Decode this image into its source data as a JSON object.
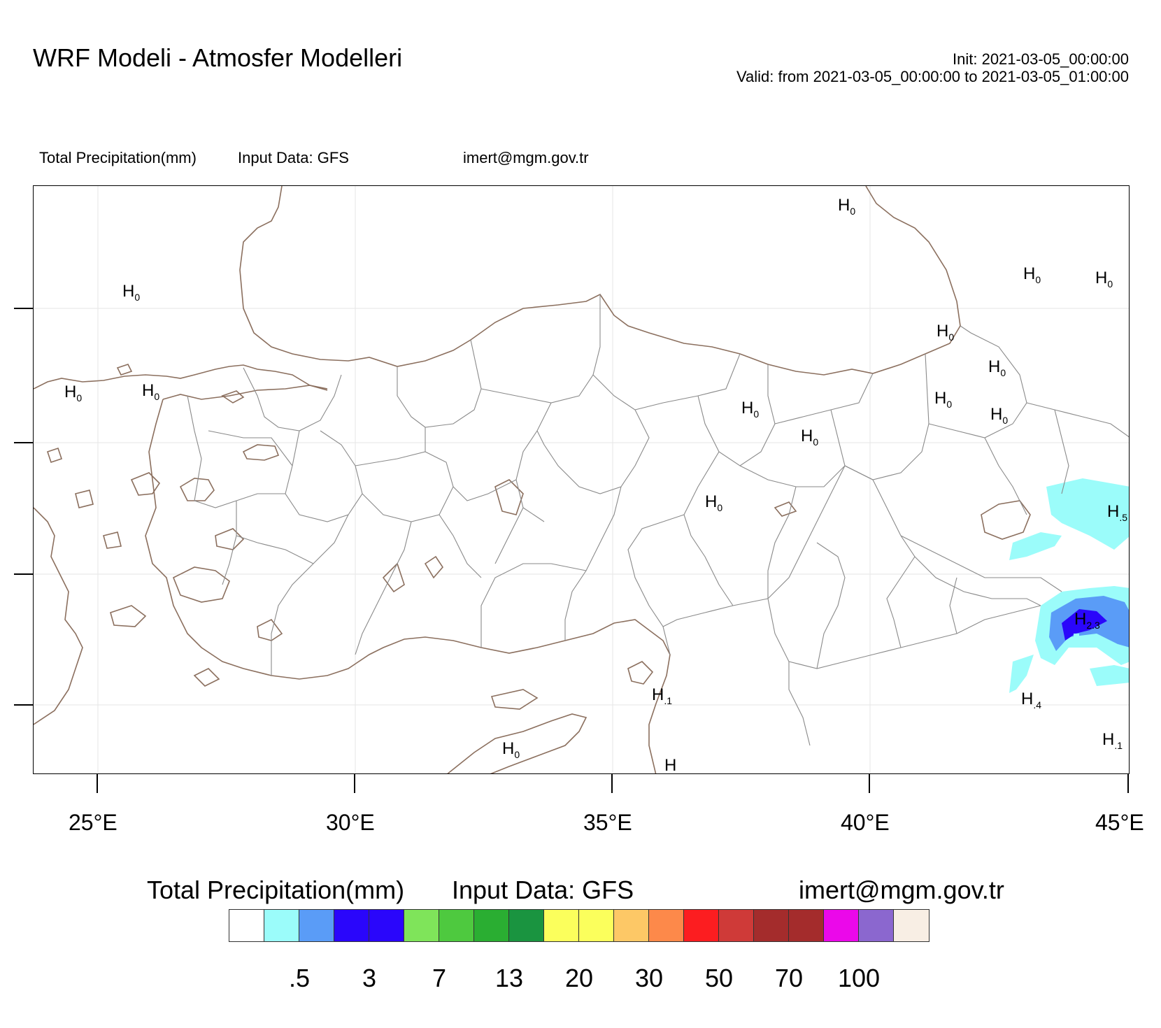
{
  "header": {
    "title": "WRF Modeli - Atmosfer Modelleri",
    "init": "Init: 2021-03-05_00:00:00",
    "valid": "Valid: from 2021-03-05_00:00:00 to 2021-03-05_01:00:00"
  },
  "subtitle": {
    "variable": "Total Precipitation(mm)",
    "input": "Input Data: GFS",
    "email": "imert@mgm.gov.tr"
  },
  "map": {
    "longitude_labels": [
      "25°E",
      "30°E",
      "35°E",
      "40°E",
      "45°E"
    ],
    "coastline_color": "#8b6f5e",
    "border_color": "#8a8a8a",
    "high_markers": [
      {
        "label": "H",
        "value": "0"
      },
      {
        "label": "H",
        "value": "0"
      },
      {
        "label": "H",
        "value": "0"
      },
      {
        "label": "H",
        "value": "0"
      },
      {
        "label": "H",
        "value": "0"
      },
      {
        "label": "H",
        "value": "0"
      },
      {
        "label": "H",
        "value": "0"
      },
      {
        "label": "H",
        "value": "0"
      },
      {
        "label": "H",
        "value": "0"
      },
      {
        "label": "H",
        "value": "0"
      },
      {
        "label": "H",
        "value": "0"
      },
      {
        "label": "H",
        "value": "0"
      },
      {
        "label": "H",
        "value": "0"
      },
      {
        "label": "H",
        "value": "0"
      },
      {
        "label": "H",
        "value": ".5"
      },
      {
        "label": "H",
        "value": "2.3"
      },
      {
        "label": "H",
        "value": ".4"
      },
      {
        "label": "H",
        "value": ".1"
      },
      {
        "label": "H",
        "value": ".1"
      },
      {
        "label": "H",
        "value": "0"
      },
      {
        "label": "H",
        "value": "."
      }
    ]
  },
  "colorbar": {
    "title_variable": "Total Precipitation(mm)",
    "title_input": "Input Data: GFS",
    "title_email": "imert@mgm.gov.tr",
    "colors": [
      "#ffffff",
      "#9bfcfa",
      "#5a9cf7",
      "#2a06fb",
      "#2a06fb",
      "#7fe45a",
      "#4ec93f",
      "#2aae32",
      "#1a9440",
      "#fbff5c",
      "#fbff5c",
      "#fdc866",
      "#fd894a",
      "#fc1d20",
      "#cf3a38",
      "#a42c2c",
      "#a42c2c",
      "#eb08ea",
      "#8b67cf",
      "#f8eee4"
    ],
    "labels": [
      ".5",
      "3",
      "7",
      "13",
      "20",
      "30",
      "50",
      "70",
      "100"
    ]
  }
}
